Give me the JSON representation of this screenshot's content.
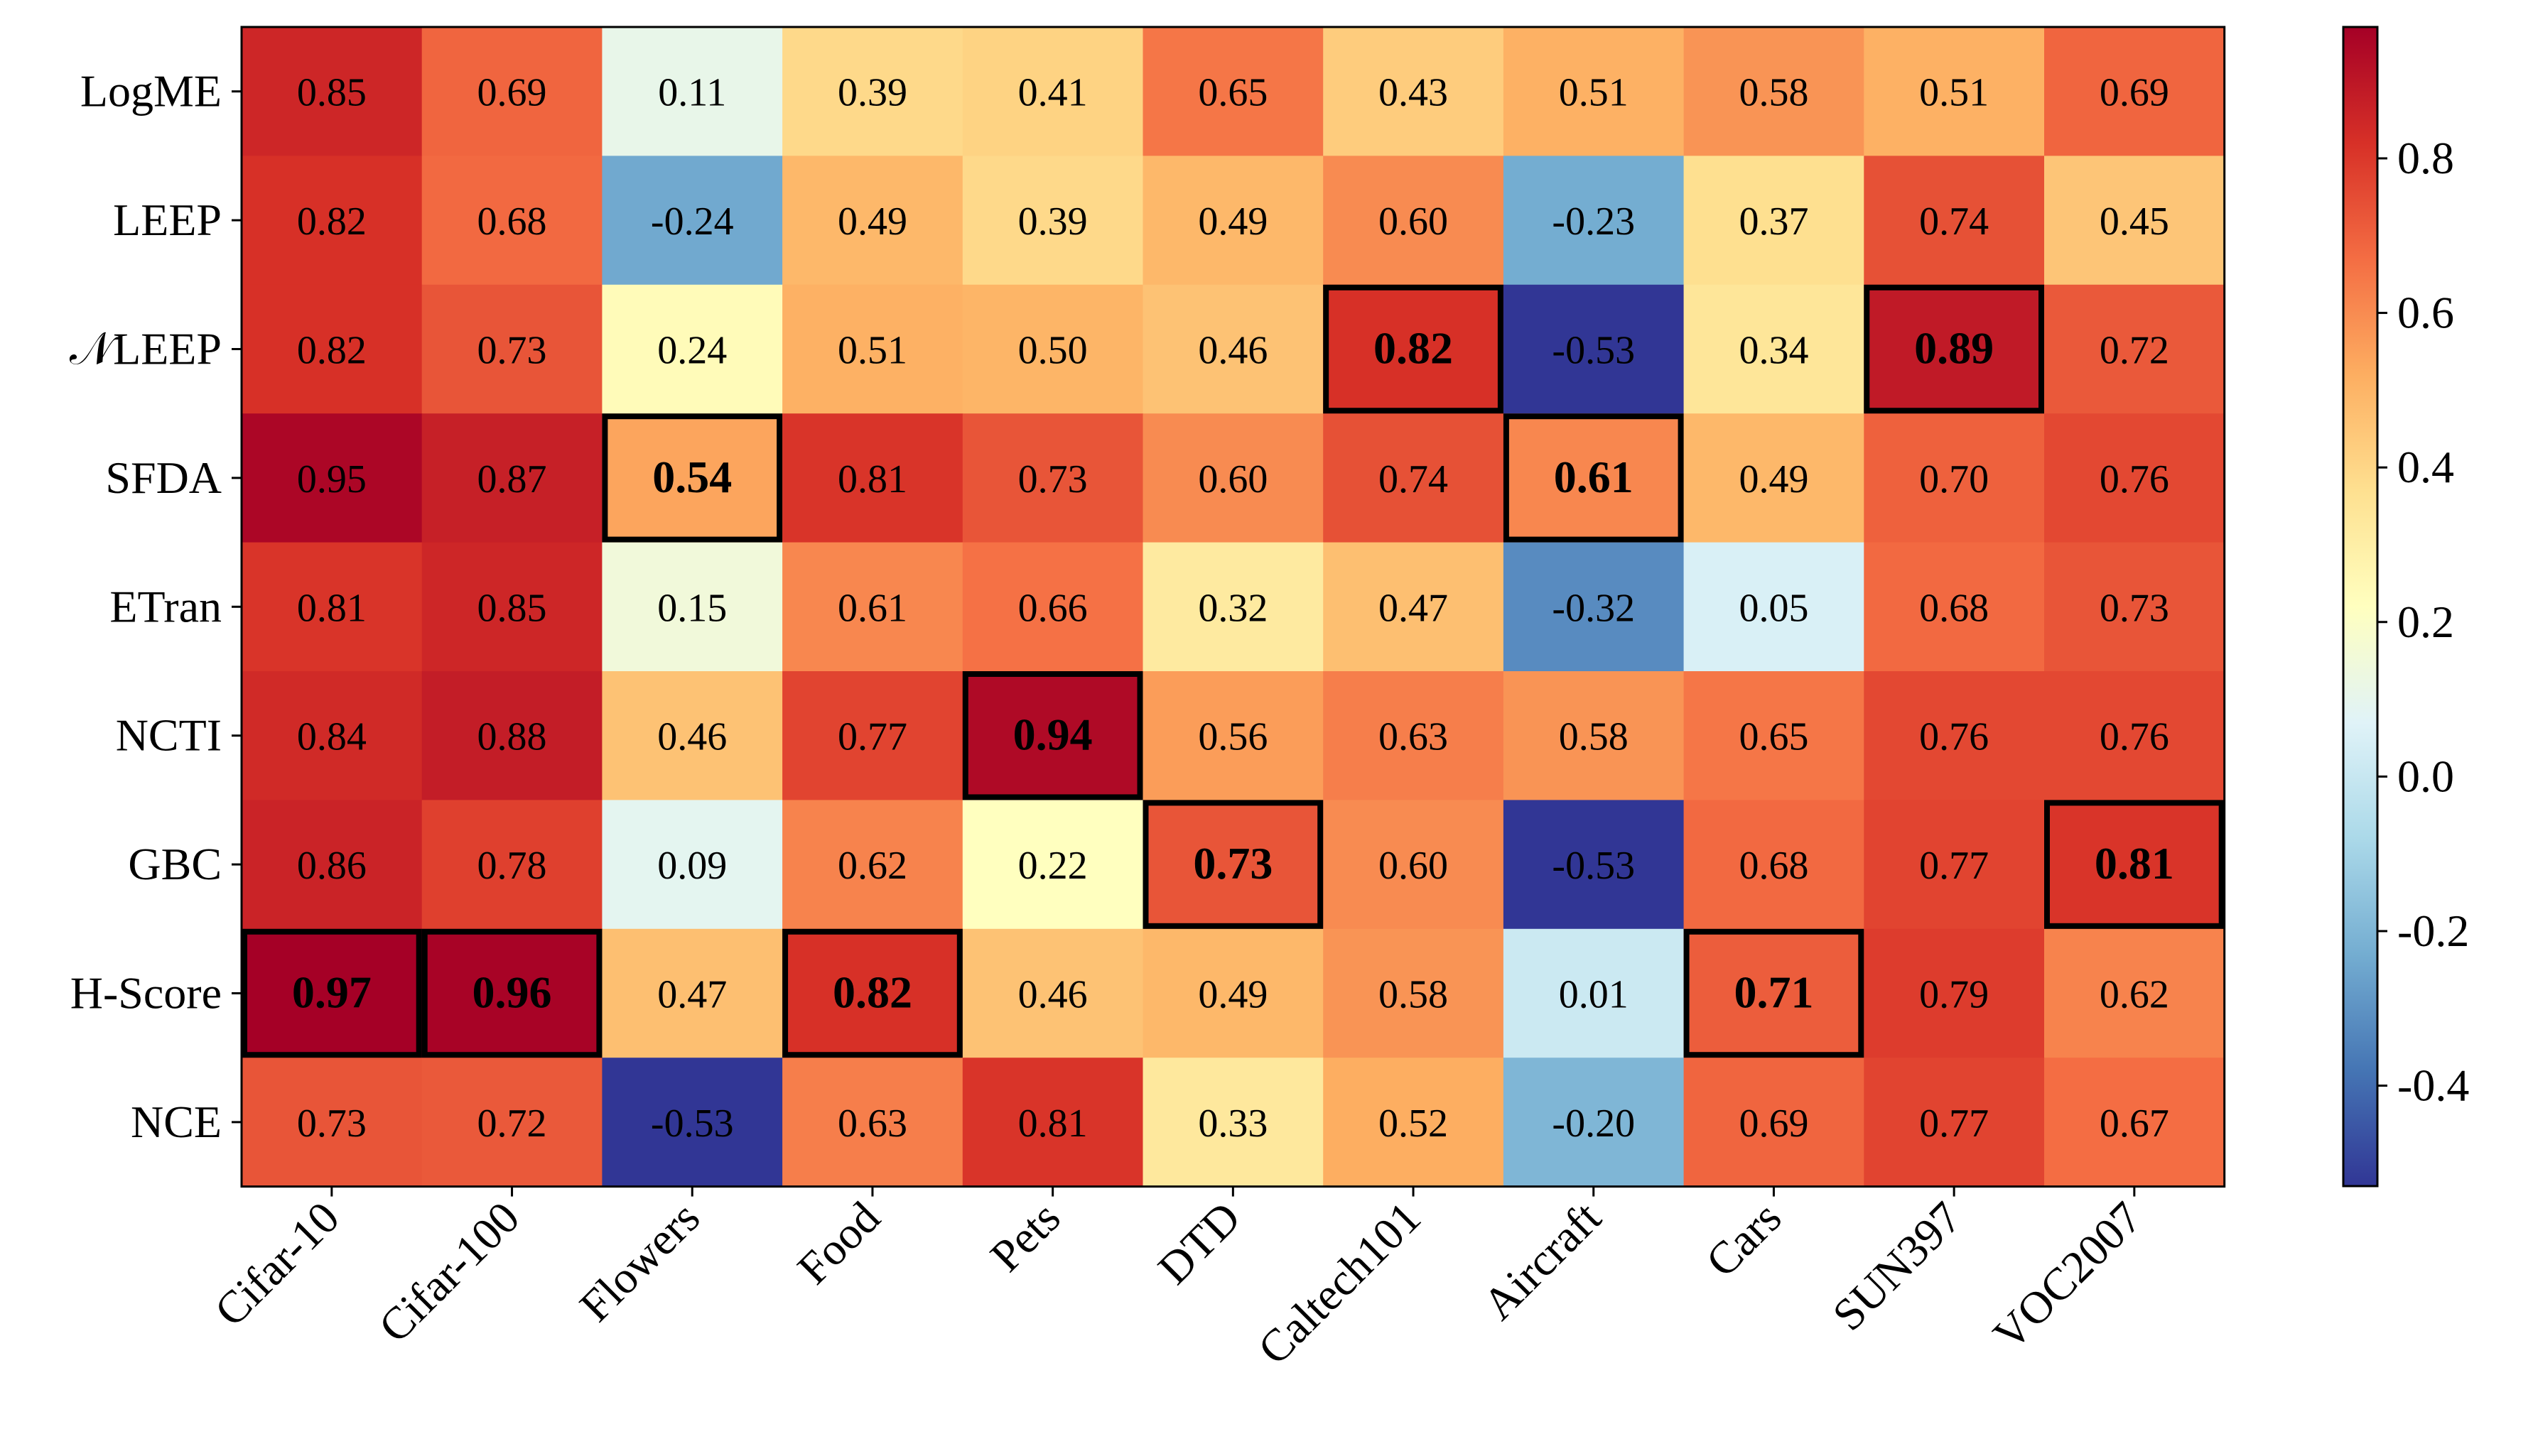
{
  "chart_data": {
    "type": "heatmap",
    "title": "",
    "xlabel": "",
    "ylabel": "",
    "rows": [
      "LogME",
      "LEEP",
      "𝒩LEEP",
      "SFDA",
      "ETran",
      "NCTI",
      "GBC",
      "H-Score",
      "NCE"
    ],
    "columns": [
      "Cifar-10",
      "Cifar-100",
      "Flowers",
      "Food",
      "Pets",
      "DTD",
      "Caltech101",
      "Aircraft",
      "Cars",
      "SUN397",
      "VOC2007"
    ],
    "values": [
      [
        0.85,
        0.69,
        0.11,
        0.39,
        0.41,
        0.65,
        0.43,
        0.51,
        0.58,
        0.51,
        0.69
      ],
      [
        0.82,
        0.68,
        -0.24,
        0.49,
        0.39,
        0.49,
        0.6,
        -0.23,
        0.37,
        0.74,
        0.45
      ],
      [
        0.82,
        0.73,
        0.24,
        0.51,
        0.5,
        0.46,
        0.82,
        -0.53,
        0.34,
        0.89,
        0.72
      ],
      [
        0.95,
        0.87,
        0.54,
        0.81,
        0.73,
        0.6,
        0.74,
        0.61,
        0.49,
        0.7,
        0.76
      ],
      [
        0.81,
        0.85,
        0.15,
        0.61,
        0.66,
        0.32,
        0.47,
        -0.32,
        0.05,
        0.68,
        0.73
      ],
      [
        0.84,
        0.88,
        0.46,
        0.77,
        0.94,
        0.56,
        0.63,
        0.58,
        0.65,
        0.76,
        0.76
      ],
      [
        0.86,
        0.78,
        0.09,
        0.62,
        0.22,
        0.73,
        0.6,
        -0.53,
        0.68,
        0.77,
        0.81
      ],
      [
        0.97,
        0.96,
        0.47,
        0.82,
        0.46,
        0.49,
        0.58,
        0.01,
        0.71,
        0.79,
        0.62
      ],
      [
        0.73,
        0.72,
        -0.53,
        0.63,
        0.81,
        0.33,
        0.52,
        -0.2,
        0.69,
        0.77,
        0.67
      ]
    ],
    "highlighted": [
      [
        7,
        0
      ],
      [
        7,
        1
      ],
      [
        3,
        2
      ],
      [
        7,
        3
      ],
      [
        5,
        4
      ],
      [
        6,
        5
      ],
      [
        2,
        6
      ],
      [
        3,
        7
      ],
      [
        7,
        8
      ],
      [
        2,
        9
      ],
      [
        6,
        10
      ]
    ],
    "colormap": "RdYlBu_r",
    "vmin": -0.53,
    "vmax": 0.97,
    "colorbar_ticks": [
      -0.4,
      -0.2,
      0.0,
      0.2,
      0.4,
      0.6,
      0.8
    ],
    "colorbar_tick_labels": [
      "-0.4",
      "-0.2",
      "0.0",
      "0.2",
      "0.4",
      "0.6",
      "0.8"
    ],
    "value_format": "2 decimals",
    "highlight_style": "bold text with black border"
  },
  "colors": {
    "text": "#000000",
    "border": "#000000",
    "background": "#ffffff"
  }
}
